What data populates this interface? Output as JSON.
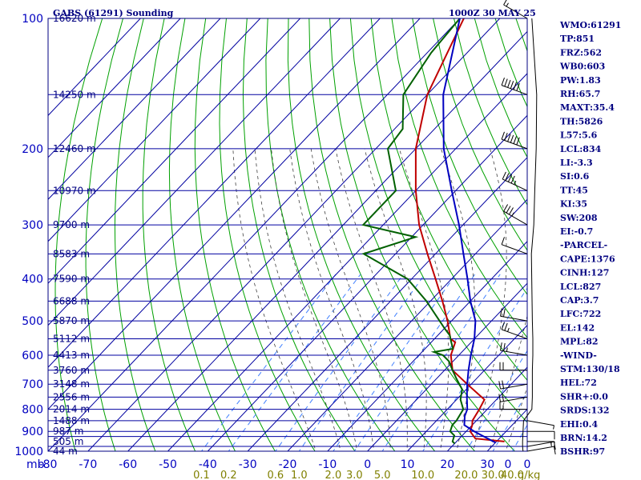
{
  "header": {
    "station": "GABS (61291) Sounding",
    "time": "1000Z 30 MAY 25"
  },
  "chart_data": {
    "type": "line",
    "title": "GABS (61291) Sounding",
    "subtitle": "1000Z 30 MAY 25",
    "x_unit_label": "mb",
    "xlim": [
      -80,
      40
    ],
    "ylim": [
      1000,
      100
    ],
    "y_scale": "log",
    "x_ticks": [
      -80,
      -70,
      -60,
      -50,
      -40,
      -30,
      -20,
      -10,
      0,
      10,
      20,
      30
    ],
    "x_tick_labels": [
      "-80",
      "-70",
      "-60",
      "-50",
      "-40",
      "-30",
      "-20",
      "-10",
      "0",
      "10",
      "20",
      "30"
    ],
    "pressure_ticks": [
      100,
      200,
      300,
      400,
      500,
      600,
      700,
      800,
      900,
      1000
    ],
    "pressure_tick_labels": [
      "100",
      "200",
      "300",
      "400",
      "500",
      "600",
      "700",
      "800",
      "900",
      "1000"
    ],
    "extra_pressure_lines": [
      150,
      250,
      350,
      450,
      550,
      650,
      750,
      850,
      925,
      975
    ],
    "height_labels": [
      {
        "p": 100,
        "text": "16620 m"
      },
      {
        "p": 150,
        "text": "14250 m"
      },
      {
        "p": 200,
        "text": "12460 m"
      },
      {
        "p": 250,
        "text": "10970 m"
      },
      {
        "p": 300,
        "text": "9700 m"
      },
      {
        "p": 350,
        "text": "8583 m"
      },
      {
        "p": 400,
        "text": "7590 m"
      },
      {
        "p": 450,
        "text": "6688 m"
      },
      {
        "p": 500,
        "text": "5870 m"
      },
      {
        "p": 550,
        "text": "5112 m"
      },
      {
        "p": 600,
        "text": "4413 m"
      },
      {
        "p": 650,
        "text": "3760 m"
      },
      {
        "p": 700,
        "text": "3148 m"
      },
      {
        "p": 750,
        "text": "2556 m"
      },
      {
        "p": 800,
        "text": "2014 m"
      },
      {
        "p": 850,
        "text": "1488 m"
      },
      {
        "p": 900,
        "text": "987 m"
      },
      {
        "p": 950,
        "text": "505 m"
      },
      {
        "p": 1000,
        "text": "44 m"
      }
    ],
    "mixing_ratio_labels": [
      "0.1",
      "0.2",
      "0.6",
      "1.0",
      "2.0",
      "3.0",
      "5.0",
      "10.0",
      "20.0",
      "30.0",
      "40.0"
    ],
    "mixing_ratio_unit": "g/kg",
    "wind_axis_labels": [
      "0",
      "0"
    ],
    "series": [
      {
        "role": "temperature",
        "color": "#c00000",
        "points": [
          [
            950,
            32
          ],
          [
            935,
            24
          ],
          [
            900,
            21
          ],
          [
            870,
            20
          ],
          [
            850,
            19
          ],
          [
            800,
            18
          ],
          [
            760,
            17
          ],
          [
            700,
            9
          ],
          [
            650,
            2
          ],
          [
            600,
            -2
          ],
          [
            560,
            -4
          ],
          [
            550,
            -6
          ],
          [
            500,
            -11
          ],
          [
            450,
            -17
          ],
          [
            400,
            -24
          ],
          [
            350,
            -32
          ],
          [
            300,
            -41
          ],
          [
            250,
            -50
          ],
          [
            200,
            -60
          ],
          [
            150,
            -70
          ],
          [
            100,
            -79
          ]
        ]
      },
      {
        "role": "dewpoint",
        "color": "#006000",
        "points": [
          [
            960,
            20
          ],
          [
            950,
            19
          ],
          [
            920,
            18
          ],
          [
            900,
            16
          ],
          [
            870,
            15
          ],
          [
            850,
            15
          ],
          [
            800,
            14
          ],
          [
            760,
            11
          ],
          [
            720,
            9
          ],
          [
            680,
            5
          ],
          [
            650,
            2
          ],
          [
            620,
            -1
          ],
          [
            600,
            -4
          ],
          [
            590,
            -7
          ],
          [
            580,
            -3
          ],
          [
            560,
            -5
          ],
          [
            540,
            -7
          ],
          [
            520,
            -10
          ],
          [
            500,
            -13
          ],
          [
            450,
            -21
          ],
          [
            400,
            -31
          ],
          [
            350,
            -48
          ],
          [
            320,
            -39
          ],
          [
            300,
            -55
          ],
          [
            250,
            -55
          ],
          [
            200,
            -67
          ],
          [
            180,
            -68
          ],
          [
            150,
            -76
          ],
          [
            120,
            -79
          ],
          [
            100,
            -80
          ]
        ]
      },
      {
        "role": "parcel",
        "color": "#0000c0",
        "points": [
          [
            955,
            30
          ],
          [
            900,
            22
          ],
          [
            870,
            18
          ],
          [
            830,
            16
          ],
          [
            800,
            15
          ],
          [
            750,
            12
          ],
          [
            700,
            9
          ],
          [
            650,
            6
          ],
          [
            600,
            3
          ],
          [
            550,
            0
          ],
          [
            500,
            -4
          ],
          [
            450,
            -10
          ],
          [
            400,
            -16
          ],
          [
            350,
            -23
          ],
          [
            300,
            -31
          ],
          [
            250,
            -41
          ],
          [
            200,
            -53
          ],
          [
            150,
            -66
          ],
          [
            100,
            -80
          ]
        ]
      }
    ],
    "wind_barbs": [
      {
        "p": 100,
        "dir": 300,
        "spd": 15
      },
      {
        "p": 150,
        "dir": 290,
        "spd": 65
      },
      {
        "p": 200,
        "dir": 290,
        "spd": 60
      },
      {
        "p": 250,
        "dir": 295,
        "spd": 45
      },
      {
        "p": 300,
        "dir": 300,
        "spd": 35
      },
      {
        "p": 350,
        "dir": 290,
        "spd": 10
      },
      {
        "p": 500,
        "dir": 280,
        "spd": 20
      },
      {
        "p": 550,
        "dir": 290,
        "spd": 25
      },
      {
        "p": 600,
        "dir": 280,
        "spd": 25
      },
      {
        "p": 650,
        "dir": 270,
        "spd": 20
      },
      {
        "p": 700,
        "dir": 260,
        "spd": 20
      },
      {
        "p": 750,
        "dir": 260,
        "spd": 20
      },
      {
        "p": 800,
        "dir": 270,
        "spd": 15
      },
      {
        "p": 850,
        "dir": 100,
        "spd": 5
      },
      {
        "p": 900,
        "dir": 90,
        "spd": 10
      },
      {
        "p": 950,
        "dir": 90,
        "spd": 15
      },
      {
        "p": 975,
        "dir": 80,
        "spd": 15
      },
      {
        "p": 1000,
        "dir": 80,
        "spd": 10
      }
    ]
  },
  "indices": [
    {
      "key": "wmo",
      "text": "WMO:61291"
    },
    {
      "key": "tp",
      "text": "TP:851"
    },
    {
      "key": "frz",
      "text": "FRZ:562"
    },
    {
      "key": "wb0",
      "text": "WB0:603"
    },
    {
      "key": "pw",
      "text": "PW:1.83"
    },
    {
      "key": "rh",
      "text": "RH:65.7"
    },
    {
      "key": "maxt",
      "text": "MAXT:35.4"
    },
    {
      "key": "th",
      "text": "TH:5826"
    },
    {
      "key": "l57",
      "text": "L57:5.6"
    },
    {
      "key": "lcl",
      "text": "LCL:834"
    },
    {
      "key": "li",
      "text": "LI:-3.3"
    },
    {
      "key": "si",
      "text": "SI:0.6"
    },
    {
      "key": "tt",
      "text": "TT:45"
    },
    {
      "key": "ki",
      "text": "KI:35"
    },
    {
      "key": "sw",
      "text": "SW:208"
    },
    {
      "key": "ei",
      "text": "EI:-0.7"
    },
    {
      "key": "parcel-header",
      "text": "-PARCEL-"
    },
    {
      "key": "cape",
      "text": "CAPE:1376"
    },
    {
      "key": "cinh",
      "text": "CINH:127"
    },
    {
      "key": "parcel-lcl",
      "text": "LCL:827"
    },
    {
      "key": "cap",
      "text": "CAP:3.7"
    },
    {
      "key": "lfc",
      "text": "LFC:722"
    },
    {
      "key": "el",
      "text": "EL:142"
    },
    {
      "key": "mpl",
      "text": "MPL:82"
    },
    {
      "key": "wind-header",
      "text": "-WIND-"
    },
    {
      "key": "stm",
      "text": "STM:130/18"
    },
    {
      "key": "hel",
      "text": "HEL:72"
    },
    {
      "key": "shr",
      "text": "SHR+:0.0"
    },
    {
      "key": "srds",
      "text": "SRDS:132"
    },
    {
      "key": "ehi",
      "text": "EHI:0.4"
    },
    {
      "key": "brn",
      "text": "BRN:14.2"
    },
    {
      "key": "bshr",
      "text": "BSHR:97"
    }
  ],
  "colors": {
    "frame": "#000080",
    "grid": "#0000a0",
    "dry_adiabat": "#00a000",
    "moist_adiabat": "#404040",
    "mixing_ratio": "#4080ff",
    "temperature": "#c00000",
    "dewpoint": "#006000",
    "parcel": "#0000c0"
  }
}
